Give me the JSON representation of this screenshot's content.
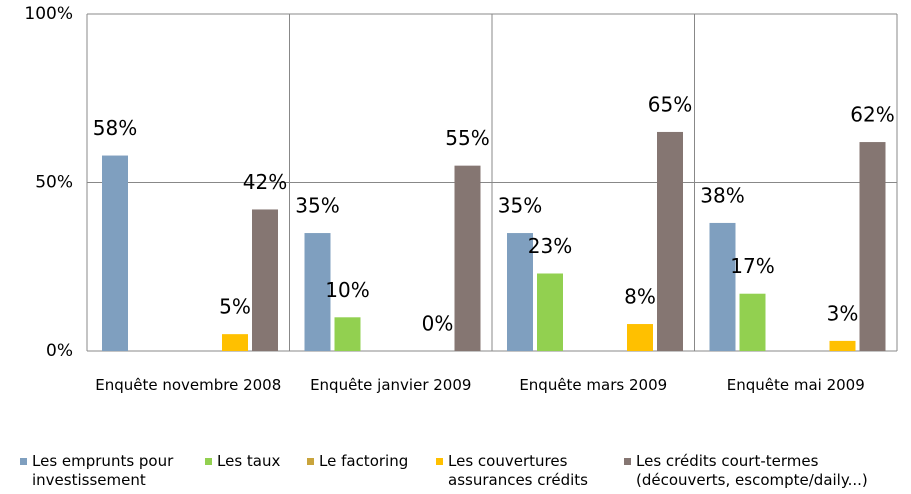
{
  "chart_data": {
    "type": "bar",
    "categories": [
      "Enquête novembre 2008",
      "Enquête janvier 2009",
      "Enquête mars 2009",
      "Enquête mai 2009"
    ],
    "series": [
      {
        "name": "Les emprunts pour investissement",
        "color": "#7f9fbf",
        "values": [
          58,
          35,
          35,
          38
        ],
        "value_labels": [
          "58%",
          "35%",
          "35%",
          "38%"
        ]
      },
      {
        "name": "Les taux",
        "color": "#92d050",
        "values": [
          null,
          10,
          23,
          17
        ],
        "value_labels": [
          null,
          "10%",
          "23%",
          "17%"
        ]
      },
      {
        "name": "Le factoring",
        "color": "#c9a43c",
        "values": [
          null,
          null,
          null,
          null
        ]
      },
      {
        "name": "Les couvertures assurances crédits",
        "color": "#ffc000",
        "values": [
          5,
          0,
          8,
          3
        ],
        "value_labels": [
          "5%",
          "0%",
          "8%",
          "3%"
        ]
      },
      {
        "name": "Les crédits court-termes (découverts, escompte/daily...)",
        "color": "#857672",
        "values": [
          42,
          55,
          65,
          62
        ],
        "value_labels": [
          "42%",
          "55%",
          "65%",
          "62%"
        ]
      }
    ],
    "ylim": [
      0,
      100
    ],
    "yticks": [
      {
        "value": 0,
        "label": "0%"
      },
      {
        "value": 50,
        "label": "50%"
      },
      {
        "value": 100,
        "label": "100%"
      }
    ],
    "grid": true,
    "legend": "bottom"
  }
}
